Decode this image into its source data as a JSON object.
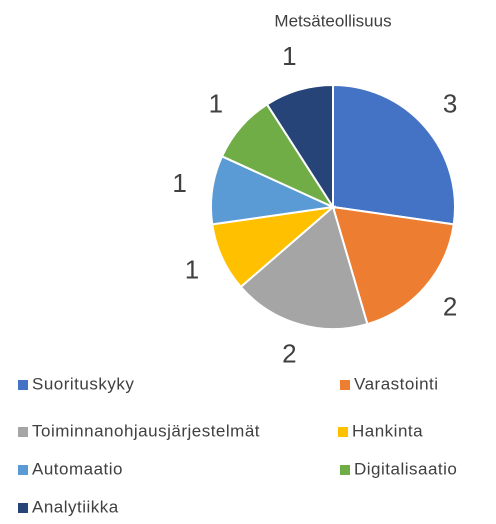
{
  "chart_data": {
    "type": "pie",
    "title": "Metsäteollisuus",
    "categories": [
      "Suorituskyky",
      "Varastointi",
      "Toiminnanohjausjärjestelmät",
      "Hankinta",
      "Automaatio",
      "Digitalisaatio",
      "Analytiikka"
    ],
    "values": [
      3,
      2,
      2,
      1,
      1,
      1,
      1
    ],
    "colors": [
      "#4472c4",
      "#ed7d31",
      "#a5a5a5",
      "#ffc000",
      "#5b9bd5",
      "#70ad47",
      "#264478"
    ]
  }
}
